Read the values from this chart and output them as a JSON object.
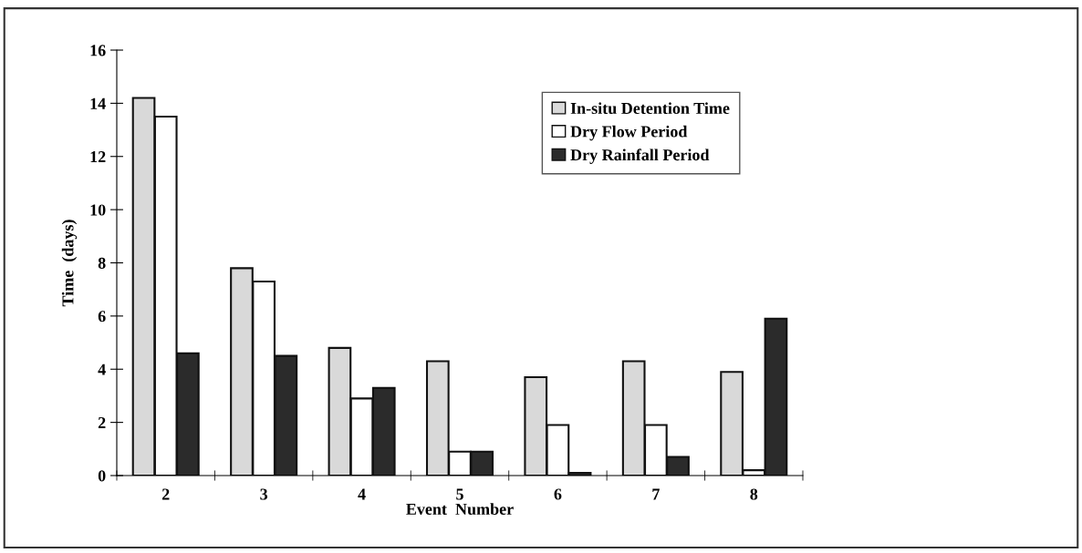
{
  "chart_data": {
    "type": "bar",
    "xlabel": "Event  Number",
    "ylabel": "Time  (days)",
    "categories": [
      "2",
      "3",
      "4",
      "5",
      "6",
      "7",
      "8"
    ],
    "series": [
      {
        "name": "In-situ Detention Time",
        "color": "#d9d9d9",
        "values": [
          14.2,
          7.8,
          4.8,
          4.3,
          3.7,
          4.3,
          3.9
        ]
      },
      {
        "name": "Dry Flow Period",
        "color": "#ffffff",
        "values": [
          13.5,
          7.3,
          2.9,
          0.9,
          1.9,
          1.9,
          0.2
        ]
      },
      {
        "name": "Dry Rainfall Period",
        "color": "#2b2b2b",
        "values": [
          4.6,
          4.5,
          3.3,
          0.9,
          0.1,
          0.7,
          5.9
        ]
      }
    ],
    "ylim": [
      0,
      16
    ],
    "yticks": [
      0,
      2,
      4,
      6,
      8,
      10,
      12,
      14,
      16
    ],
    "grid": false,
    "legend": "top right"
  }
}
